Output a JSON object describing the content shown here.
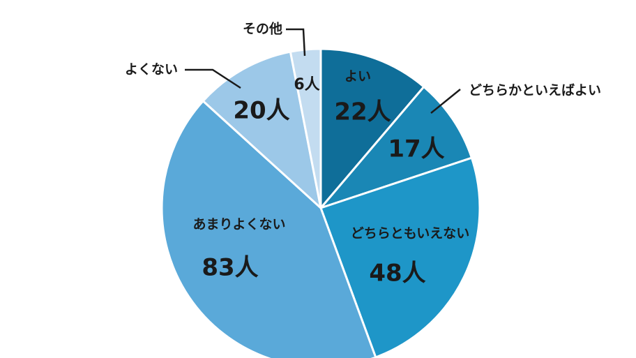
{
  "chart_data": {
    "type": "pie",
    "categories": [
      "よい",
      "どちらかといえばよい",
      "どちらともいえない",
      "あまりよくない",
      "よくない",
      "その他"
    ],
    "values": [
      22,
      17,
      48,
      83,
      20,
      6
    ],
    "value_labels": [
      "22人",
      "17人",
      "48人",
      "83人",
      "20人",
      "6人"
    ],
    "colors": [
      "#0f6e99",
      "#1a87b5",
      "#1e96c8",
      "#5aa9d9",
      "#9cc8e8",
      "#c3dcf0"
    ]
  }
}
